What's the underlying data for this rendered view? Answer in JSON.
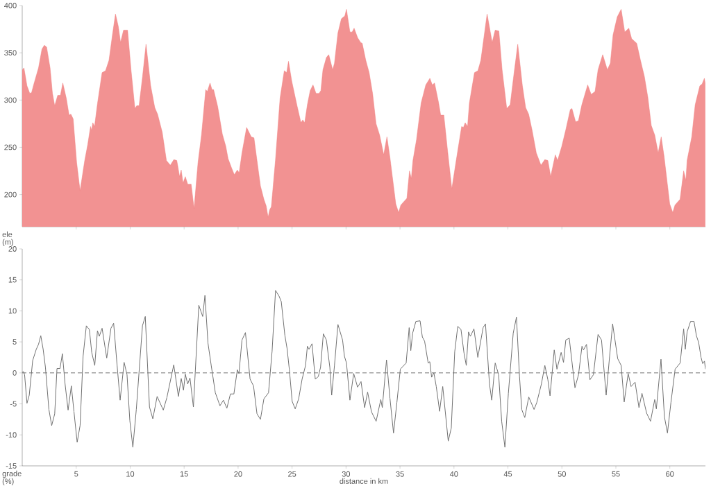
{
  "chart_data": [
    {
      "type": "area",
      "color": "#f07f7f",
      "ylabel": "ele (m)",
      "xlim": [
        0,
        63.3
      ],
      "ylim": [
        166,
        400
      ],
      "yticks": [
        200,
        250,
        300,
        350,
        400
      ],
      "xticks": [
        5,
        10,
        15,
        20,
        25,
        30,
        35,
        40,
        45,
        50,
        55,
        60
      ],
      "tick_labels": "y",
      "x": [
        0,
        0.16,
        0.44,
        0.7,
        0.87,
        1.08,
        1.51,
        1.83,
        2.05,
        2.26,
        2.58,
        2.8,
        3.01,
        3.29,
        3.54,
        3.76,
        4.08,
        4.34,
        4.51,
        4.72,
        5.04,
        5.36,
        5.79,
        6.07,
        6.33,
        6.43,
        6.54,
        6.7,
        6.97,
        7.4,
        7.72,
        8.04,
        8.36,
        8.64,
        8.9,
        9.11,
        9.39,
        9.76,
        10.08,
        10.44,
        10.61,
        10.83,
        11.15,
        11.47,
        11.9,
        12.28,
        12.54,
        12.97,
        13.36,
        13.72,
        14.05,
        14.32,
        14.58,
        14.73,
        14.9,
        15.11,
        15.33,
        15.65,
        15.92,
        16.29,
        16.61,
        17.0,
        17.15,
        17.4,
        17.58,
        17.73,
        18.11,
        18.54,
        18.86,
        19.07,
        19.4,
        19.65,
        19.93,
        20.1,
        20.36,
        20.79,
        21.22,
        21.47,
        21.75,
        22.07,
        22.39,
        22.6,
        22.78,
        22.93,
        23.08,
        23.46,
        23.89,
        24.28,
        24.5,
        24.67,
        24.97,
        25.44,
        25.82,
        25.99,
        26.17,
        26.42,
        26.68,
        26.94,
        27.22,
        27.5,
        27.67,
        27.86,
        28.18,
        28.4,
        28.76,
        28.93,
        29.25,
        29.57,
        29.89,
        30.04,
        30.36,
        30.57,
        30.75,
        31.07,
        31.35,
        31.5,
        31.83,
        32.14,
        32.46,
        32.78,
        33.11,
        33.49,
        33.79,
        34.07,
        34.61,
        34.87,
        35.08,
        35.64,
        35.88,
        36.05,
        36.2,
        36.53,
        36.96,
        37.39,
        37.77,
        37.99,
        38.2,
        38.56,
        38.77,
        39.06,
        39.41,
        39.8,
        40.18,
        40.71,
        40.88,
        41.04,
        41.26,
        41.43,
        41.9,
        42.22,
        42.49,
        43.07,
        43.54,
        43.82,
        44.16,
        44.46,
        44.89,
        45.21,
        45.53,
        45.91,
        46.34,
        46.64,
        46.92,
        47.24,
        47.63,
        48.06,
        48.42,
        48.7,
        48.96,
        49.39,
        49.6,
        49.99,
        50.35,
        50.78,
        50.93,
        51.27,
        51.53,
        51.85,
        52.39,
        52.71,
        53.07,
        53.35,
        53.78,
        54.21,
        54.49,
        54.74,
        55.13,
        55.49,
        55.82,
        56.2,
        56.46,
        56.93,
        57.28,
        57.64,
        57.96,
        58.28,
        58.6,
        58.92,
        59.2,
        59.46,
        59.99,
        60.27,
        60.48,
        60.95,
        61.28,
        61.49,
        61.6,
        62.03,
        62.35,
        62.78,
        62.99,
        63.2,
        63.27
      ],
      "values": [
        332,
        334,
        315,
        307,
        308,
        317,
        334,
        354,
        358,
        356,
        334,
        307,
        294,
        305,
        305,
        318,
        302,
        284,
        285,
        280,
        234,
        204,
        236,
        253,
        272,
        268,
        276,
        272,
        296,
        329,
        331,
        342,
        369,
        391,
        378,
        361,
        374,
        374,
        332,
        291,
        294,
        294,
        325,
        359,
        315,
        292,
        285,
        266,
        236,
        231,
        237,
        236,
        219,
        226,
        212,
        219,
        211,
        211,
        185,
        234,
        263,
        311,
        309,
        318,
        311,
        311,
        293,
        264,
        251,
        238,
        228,
        221,
        226,
        223,
        244,
        271,
        261,
        260,
        236,
        209,
        195,
        188,
        176,
        184,
        187,
        236,
        302,
        331,
        329,
        341,
        320,
        295,
        276,
        279,
        276,
        295,
        310,
        316,
        307,
        307,
        310,
        332,
        345,
        348,
        332,
        339,
        371,
        386,
        389,
        396,
        372,
        372,
        376,
        366,
        361,
        360,
        342,
        329,
        307,
        275,
        263,
        242,
        261,
        239,
        190,
        181,
        189,
        196,
        225,
        217,
        236,
        258,
        297,
        316,
        323,
        316,
        318,
        298,
        284,
        284,
        246,
        206,
        234,
        272,
        271,
        276,
        272,
        297,
        329,
        331,
        342,
        391,
        361,
        374,
        373,
        332,
        291,
        295,
        325,
        359,
        315,
        292,
        285,
        268,
        244,
        231,
        237,
        236,
        219,
        242,
        236,
        251,
        268,
        290,
        291,
        277,
        278,
        295,
        316,
        306,
        309,
        332,
        348,
        332,
        339,
        369,
        388,
        396,
        372,
        376,
        365,
        360,
        342,
        325,
        303,
        273,
        263,
        244,
        261,
        241,
        190,
        181,
        189,
        195,
        225,
        215,
        236,
        261,
        295,
        315,
        317,
        323,
        318
      ]
    },
    {
      "type": "line",
      "color": "#707070",
      "xlabel": "distance in km",
      "ylabel": "grade (%)",
      "xlim": [
        0,
        63.3
      ],
      "ylim": [
        -15,
        20
      ],
      "yticks": [
        -15,
        -10,
        -5,
        0,
        5,
        10,
        15,
        20
      ],
      "xticks": [
        5,
        10,
        15,
        20,
        25,
        30,
        35,
        40,
        45,
        50,
        55,
        60
      ],
      "ref_lines": [
        {
          "axis": "y",
          "value": 0,
          "color": "#707070",
          "line_style": "dashed"
        }
      ],
      "x": [
        0,
        0.12,
        0.22,
        0.44,
        0.65,
        0.97,
        1.3,
        1.51,
        1.72,
        1.94,
        2.15,
        2.47,
        2.73,
        3.01,
        3.22,
        3.5,
        3.72,
        3.97,
        4.25,
        4.55,
        4.79,
        5.09,
        5.36,
        5.64,
        5.94,
        6.22,
        6.44,
        6.72,
        6.97,
        7.14,
        7.4,
        7.83,
        8.22,
        8.47,
        8.79,
        9.07,
        9.44,
        9.71,
        9.97,
        10.25,
        10.57,
        11.14,
        11.4,
        11.79,
        12.1,
        12.5,
        13.07,
        13.4,
        14.04,
        14.47,
        14.73,
        14.94,
        15.11,
        15.33,
        15.54,
        15.86,
        16.36,
        16.72,
        16.93,
        17.21,
        17.51,
        17.89,
        18.32,
        18.64,
        18.96,
        19.29,
        19.61,
        19.93,
        20.08,
        20.36,
        20.68,
        21.11,
        21.43,
        21.75,
        22.07,
        22.39,
        22.82,
        23.15,
        23.47,
        23.79,
        24.0,
        24.33,
        24.54,
        24.75,
        25.01,
        25.29,
        25.61,
        25.93,
        26.25,
        26.42,
        26.57,
        26.85,
        27.15,
        27.43,
        27.64,
        27.9,
        28.18,
        28.5,
        28.67,
        28.93,
        29.25,
        29.68,
        29.85,
        30.04,
        30.36,
        30.71,
        31.07,
        31.39,
        31.72,
        32.0,
        32.36,
        32.79,
        33.22,
        33.36,
        33.75,
        34.07,
        34.4,
        34.71,
        35.03,
        35.57,
        35.85,
        36.0,
        36.17,
        36.47,
        36.86,
        37.07,
        37.28,
        37.61,
        37.76,
        37.93,
        38.14,
        38.36,
        38.67,
        38.96,
        39.47,
        39.75,
        40.07,
        40.35,
        40.65,
        40.93,
        41.14,
        41.35,
        41.52,
        41.85,
        42.21,
        42.7,
        42.92,
        43.29,
        43.5,
        43.82,
        44.14,
        44.42,
        44.72,
        45.04,
        45.49,
        45.79,
        46.07,
        46.28,
        46.56,
        46.93,
        47.42,
        47.67,
        48.1,
        48.42,
        48.7,
        48.9,
        49.29,
        49.54,
        49.93,
        50.15,
        50.36,
        50.68,
        51.21,
        51.54,
        51.86,
        52.0,
        52.28,
        52.6,
        52.92,
        53.35,
        53.67,
        54.1,
        54.42,
        54.7,
        55.17,
        55.49,
        55.77,
        56.14,
        56.41,
        56.78,
        57.14,
        57.42,
        57.85,
        58.21,
        58.6,
        58.75,
        59.18,
        59.5,
        59.78,
        60.1,
        60.49,
        60.96,
        61.28,
        61.43,
        61.6,
        61.92,
        62.24,
        62.46,
        62.67,
        62.89,
        63.04,
        63.21,
        63.3
      ],
      "values": [
        0.1,
        0.2,
        -0.3,
        -4.9,
        -3.6,
        2.0,
        3.8,
        4.6,
        6.0,
        3.8,
        0.9,
        -5.9,
        -8.5,
        -6.6,
        0.7,
        0.7,
        3.1,
        -1.8,
        -6.0,
        -2.1,
        -6.2,
        -11.2,
        -8.5,
        2.7,
        7.6,
        7.0,
        3.3,
        1.2,
        6.8,
        5.9,
        7.2,
        2.4,
        7.2,
        8.0,
        1.2,
        -4.4,
        1.7,
        -0.3,
        -7.7,
        -12.0,
        -5.9,
        7.6,
        9.1,
        -5.5,
        -7.4,
        -3.8,
        -6.0,
        -4.0,
        1.3,
        -3.8,
        -0.9,
        -2.8,
        -0.2,
        -1.8,
        -0.8,
        -5.5,
        10.9,
        9.1,
        12.5,
        4.8,
        1.2,
        -3.2,
        -5.3,
        -4.4,
        -5.7,
        -3.4,
        -3.4,
        0.5,
        -0.1,
        5.3,
        6.5,
        -1.0,
        -2.1,
        -6.6,
        -7.5,
        -4.2,
        -3.2,
        3.5,
        13.3,
        12.4,
        11.5,
        6.1,
        3.9,
        0.5,
        -4.6,
        -5.8,
        -4.2,
        -1.0,
        1.2,
        4.3,
        3.8,
        4.7,
        -1.0,
        -0.6,
        0.9,
        6.3,
        5.3,
        0.9,
        -3.6,
        1.2,
        7.8,
        5.3,
        2.7,
        1.6,
        -4.4,
        -0.1,
        -2.3,
        -1.4,
        -5.6,
        -3.1,
        -6.3,
        -7.8,
        -4.3,
        -5.6,
        2.1,
        -4.1,
        -9.7,
        -4.8,
        0.6,
        1.6,
        7.3,
        3.6,
        6.4,
        8.3,
        8.4,
        5.8,
        5.1,
        1.6,
        1.8,
        -0.7,
        0.0,
        -2.2,
        -6.2,
        -2.2,
        -11.0,
        -8.9,
        3.4,
        7.5,
        7.0,
        3.2,
        1.2,
        6.6,
        5.9,
        7.1,
        2.5,
        7.3,
        7.9,
        -1.8,
        -4.4,
        1.6,
        -0.3,
        -7.8,
        -12.0,
        -3.3,
        6.4,
        9.0,
        -0.5,
        -5.9,
        -7.2,
        -3.9,
        -5.9,
        -4.8,
        -1.8,
        1.2,
        -1.1,
        -3.7,
        3.7,
        0.6,
        3.3,
        1.7,
        5.3,
        5.6,
        -2.4,
        -0.3,
        4.3,
        3.7,
        4.6,
        -1.1,
        -0.3,
        6.2,
        5.3,
        -3.6,
        2.7,
        7.9,
        2.3,
        1.2,
        -4.7,
        -0.1,
        -2.2,
        -1.5,
        -5.6,
        -3.3,
        -6.5,
        -7.8,
        -4.3,
        -5.8,
        2.2,
        -7.1,
        -9.7,
        -4.8,
        0.6,
        1.6,
        7.1,
        3.8,
        6.6,
        8.3,
        8.3,
        6.0,
        4.9,
        2.5,
        1.5,
        1.9,
        0.6
      ]
    }
  ]
}
